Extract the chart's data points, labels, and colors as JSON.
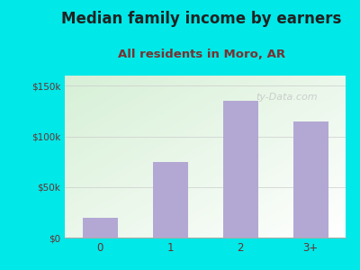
{
  "title": "Median family income by earners",
  "subtitle": "All residents in Moro, AR",
  "categories": [
    "0",
    "1",
    "2",
    "3+"
  ],
  "values": [
    20000,
    75000,
    135000,
    115000
  ],
  "bar_color": "#b3a8d4",
  "title_fontsize": 12,
  "subtitle_fontsize": 9.5,
  "title_color": "#222222",
  "subtitle_color": "#7a3030",
  "tick_color": "#6a3030",
  "bg_outer": "#00e8e8",
  "yticks": [
    0,
    50000,
    100000,
    150000
  ],
  "ytick_labels": [
    "$0",
    "$50k",
    "$100k",
    "$150k"
  ],
  "ylim": [
    0,
    160000
  ],
  "watermark": "ty-Data.com",
  "bar_width": 0.5,
  "grad_color_topleft": "#d0ecd0",
  "grad_color_bottomright": "#f8fff8"
}
